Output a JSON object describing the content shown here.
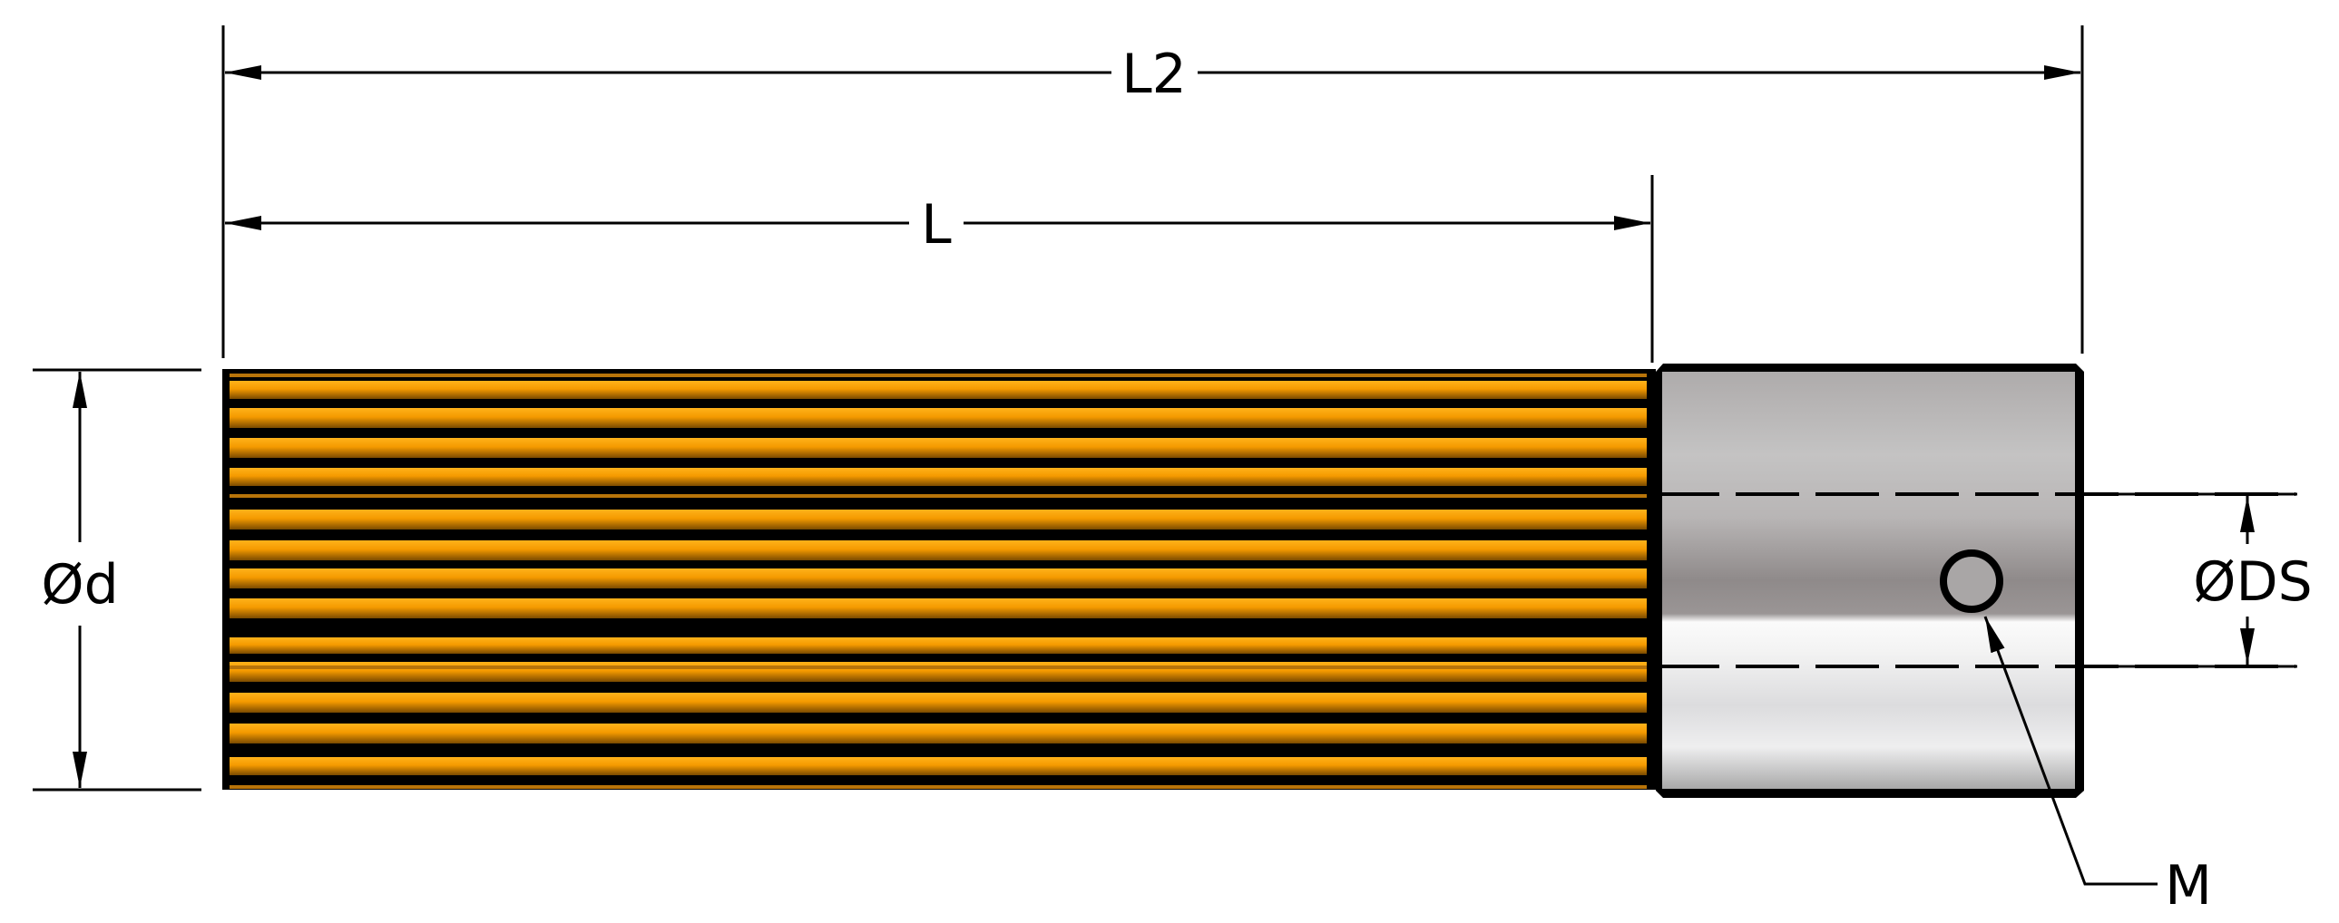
{
  "labels": {
    "overall_length": "L2",
    "length": "L",
    "diameter": "Ød",
    "shank_diameter": "ØDS",
    "set_screw": "M"
  },
  "colors": {
    "body_orange": "#f59a00",
    "body_dark": "#7a4a00",
    "shank_silver": "#b5b2b2",
    "line": "#000000"
  }
}
